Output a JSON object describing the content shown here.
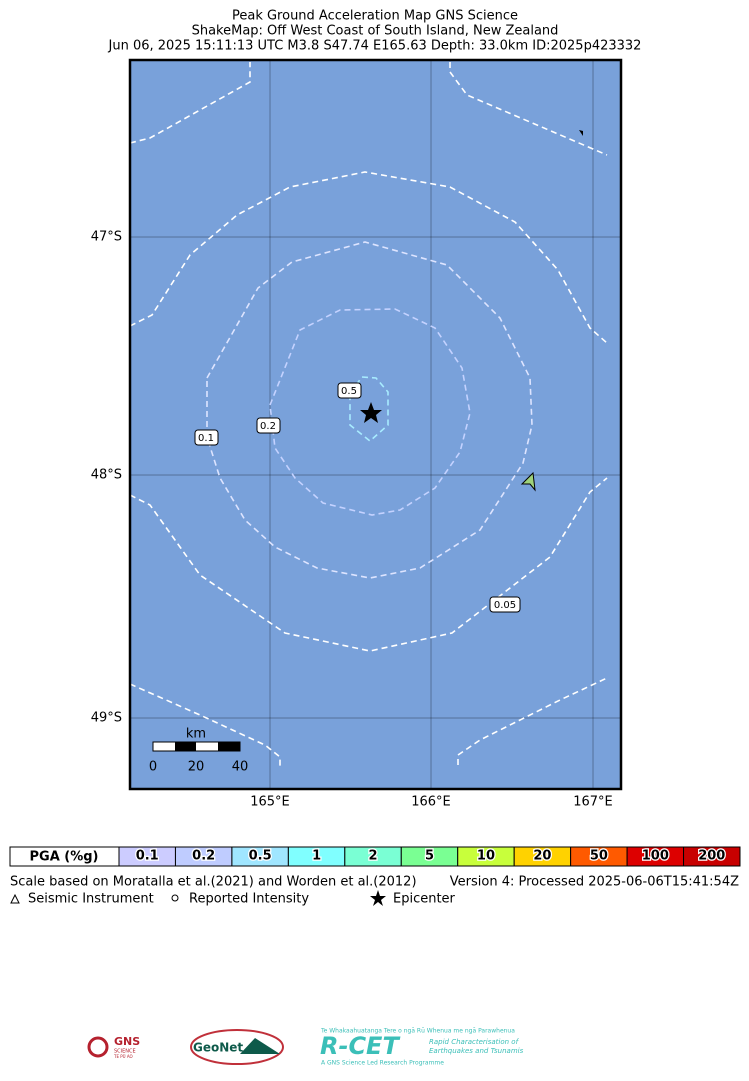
{
  "title": [
    "Peak Ground Acceleration Map GNS Science",
    "ShakeMap: Off West Coast of South Island, New Zealand",
    "Jun 06, 2025 15:11:13 UTC M3.8 S47.74 E165.63 Depth: 33.0km ID:2025p423332"
  ],
  "map": {
    "lat_labels": [
      "47°S",
      "48°S",
      "49°S"
    ],
    "lon_labels": [
      "165°E",
      "166°E",
      "167°E"
    ],
    "contour_labels": [
      "0.5",
      "0.2",
      "0.1",
      "0.05"
    ],
    "scale_bar": {
      "unit": "km",
      "labels": [
        "0",
        "20",
        "40"
      ]
    }
  },
  "legend": {
    "title": "PGA (%g)",
    "bins": [
      {
        "label": "0.1",
        "color": "#ccccff"
      },
      {
        "label": "0.2",
        "color": "#bfccff"
      },
      {
        "label": "0.5",
        "color": "#a0e6ff"
      },
      {
        "label": "1",
        "color": "#80ffff"
      },
      {
        "label": "2",
        "color": "#7affd4"
      },
      {
        "label": "5",
        "color": "#7aff93"
      },
      {
        "label": "10",
        "color": "#c8ff3b"
      },
      {
        "label": "20",
        "color": "#ffd200"
      },
      {
        "label": "50",
        "color": "#ff5a00"
      },
      {
        "label": "100",
        "color": "#dd0000"
      },
      {
        "label": "200",
        "color": "#c80000"
      }
    ]
  },
  "footer": {
    "note": "Scale based on Moratalla et al.(2021) and Worden et al.(2012)",
    "version": "Version 4: Processed 2025-06-06T15:41:54Z",
    "symbols": [
      "Seismic Instrument",
      "Reported Intensity",
      "Epicenter"
    ]
  },
  "logos": {
    "gns": "GNS",
    "gns_sub": "SCIENCE",
    "gns_maori": "TE PŪ AO",
    "geonet": "GeoNet",
    "rcet": "R-CET",
    "rcet_top": "Te Whakaahuatanga Tere o ngā Rū Whenua me ngā Parawhenua",
    "rcet_sub1": "Rapid Characterisation of",
    "rcet_sub2": "Earthquakes and Tsunamis",
    "rcet_bottom": "A GNS Science Led Research Programme"
  }
}
